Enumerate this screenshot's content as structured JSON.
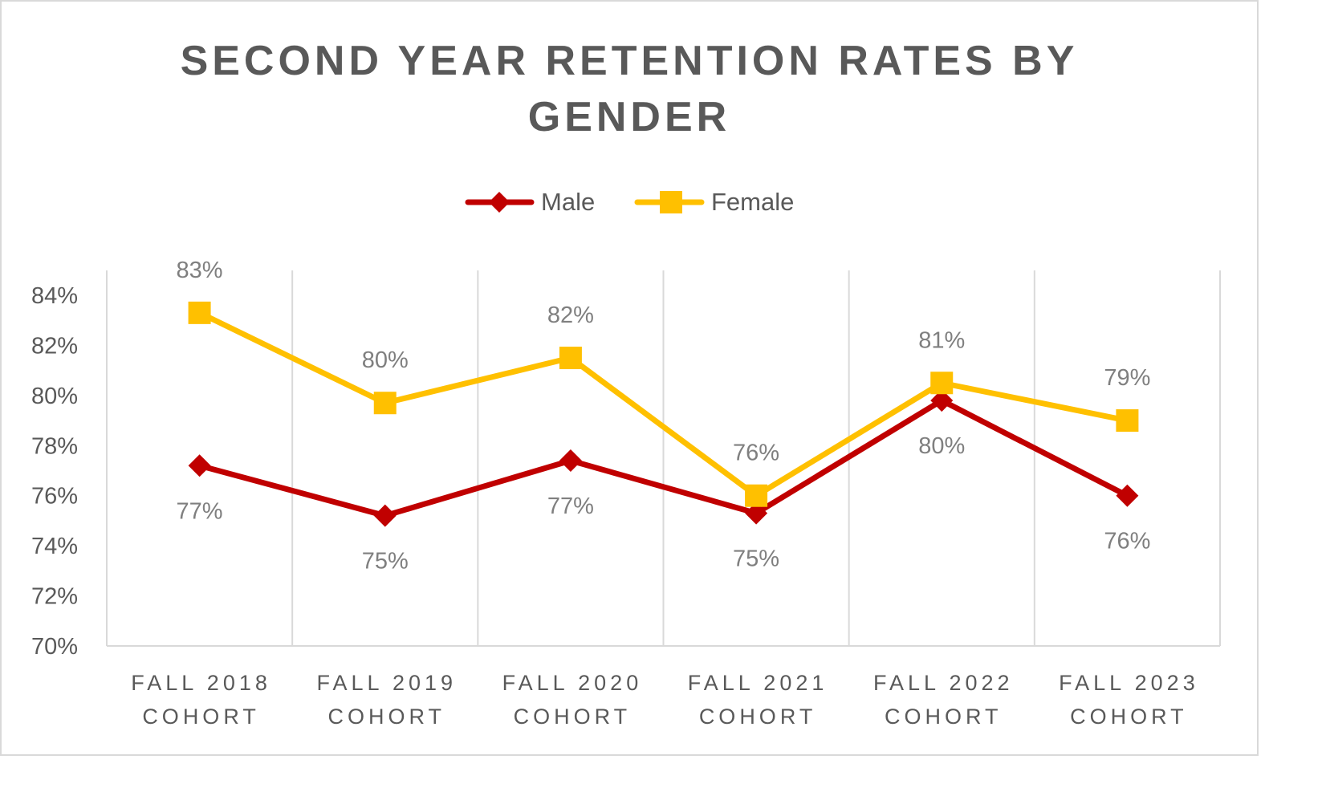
{
  "chart_data": {
    "type": "line",
    "title": "SECOND YEAR RETENTION RATES BY GENDER",
    "title_lines": [
      "SECOND YEAR RETENTION RATES BY",
      "GENDER"
    ],
    "xlabel": "",
    "ylabel": "",
    "categories": [
      [
        "FALL 2018",
        "COHORT"
      ],
      [
        "FALL 2019",
        "COHORT"
      ],
      [
        "FALL 2020",
        "COHORT"
      ],
      [
        "FALL 2021",
        "COHORT"
      ],
      [
        "FALL 2022",
        "COHORT"
      ],
      [
        "FALL 2023",
        "COHORT"
      ]
    ],
    "ylim": [
      70,
      84
    ],
    "yticks": [
      70,
      72,
      74,
      76,
      78,
      80,
      82,
      84
    ],
    "ytick_labels": [
      "70%",
      "72%",
      "74%",
      "76%",
      "78%",
      "80%",
      "82%",
      "84%"
    ],
    "grid": "vertical",
    "legend": {
      "position": "top"
    },
    "series": [
      {
        "name": "Male",
        "color": "#c00000",
        "marker": "diamond",
        "values": [
          77.2,
          75.2,
          77.4,
          75.3,
          79.8,
          76.0
        ],
        "labels": [
          "77%",
          "75%",
          "77%",
          "75%",
          "80%",
          "76%"
        ],
        "label_position": "below"
      },
      {
        "name": "Female",
        "color": "#ffc000",
        "marker": "square",
        "values": [
          83.3,
          79.7,
          81.5,
          76.0,
          80.5,
          79.0
        ],
        "labels": [
          "83%",
          "80%",
          "82%",
          "76%",
          "81%",
          "79%"
        ],
        "label_position": "above"
      }
    ]
  }
}
